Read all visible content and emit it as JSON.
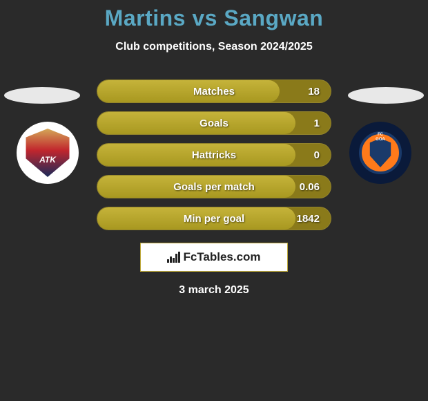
{
  "title_color": "#5aa8c4",
  "pill_bg": "#8a7a1a",
  "pill_fill": "#b5a52a",
  "header": {
    "title": "Martins vs Sangwan",
    "subtitle": "Club competitions, Season 2024/2025"
  },
  "teams": {
    "left": {
      "name": "ATK",
      "badge_type": "atk"
    },
    "right": {
      "name": "FC Goa",
      "badge_type": "goa"
    }
  },
  "stats": [
    {
      "label": "Matches",
      "value": "18",
      "fill_pct": 78
    },
    {
      "label": "Goals",
      "value": "1",
      "fill_pct": 85
    },
    {
      "label": "Hattricks",
      "value": "0",
      "fill_pct": 85
    },
    {
      "label": "Goals per match",
      "value": "0.06",
      "fill_pct": 85
    },
    {
      "label": "Min per goal",
      "value": "1842",
      "fill_pct": 85
    }
  ],
  "brand": {
    "text": "FcTables.com"
  },
  "date": "3 march 2025"
}
